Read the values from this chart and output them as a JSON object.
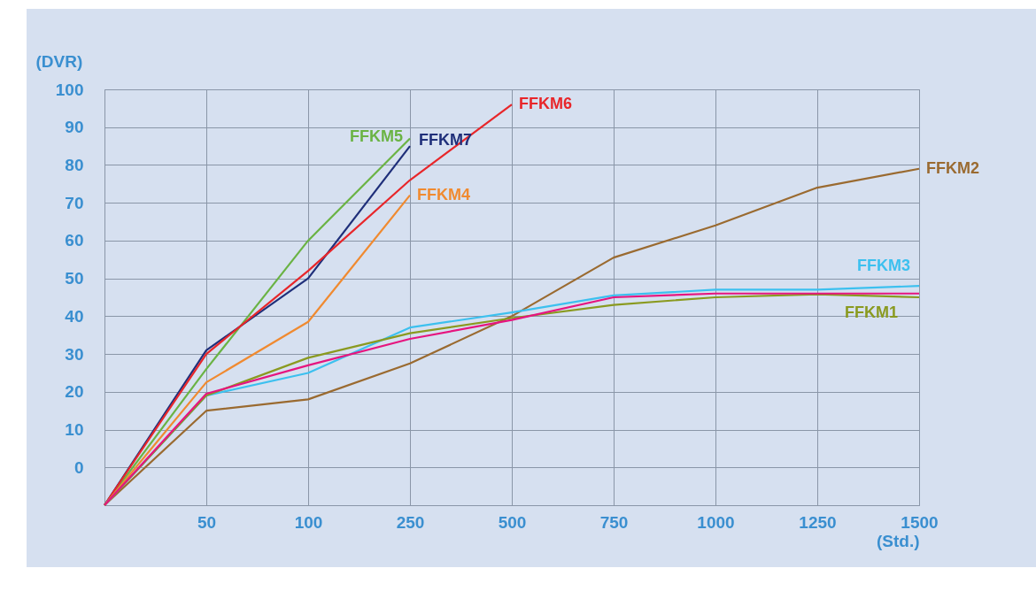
{
  "chart_data": {
    "type": "line",
    "ylabel": "(DVR)",
    "xlabel": "(Std.)",
    "categories": [
      null,
      "50",
      "100",
      "250",
      "500",
      "750",
      "1000",
      "1250",
      "1500"
    ],
    "ylim": [
      -10,
      100
    ],
    "yticks": [
      {
        "value": -10,
        "label": null
      },
      0,
      10,
      20,
      30,
      40,
      50,
      60,
      70,
      80,
      90,
      100
    ],
    "grid": true,
    "legend": false,
    "marker": "none",
    "line_style": "solid",
    "series": [
      {
        "name": "FFKM5",
        "color": "#6ab344",
        "values": [
          -10,
          26,
          60,
          87,
          null,
          null,
          null,
          null,
          null
        ]
      },
      {
        "name": "FFKM7",
        "color": "#1f2f7a",
        "values": [
          -10,
          31,
          50,
          85,
          null,
          null,
          null,
          null,
          null
        ]
      },
      {
        "name": "FFKM6",
        "color": "#e8262a",
        "values": [
          -10,
          30,
          52,
          76,
          96,
          null,
          null,
          null,
          null
        ]
      },
      {
        "name": "FFKM4",
        "color": "#f08a30",
        "values": [
          -10,
          22.5,
          38.5,
          72,
          null,
          null,
          null,
          null,
          null
        ]
      },
      {
        "name": "FFKM2",
        "color": "#9a6a30",
        "values": [
          -10,
          15,
          18,
          27.5,
          40,
          55.5,
          64,
          74,
          79
        ]
      },
      {
        "name": "FFKM3",
        "color": "#3cc0ef",
        "values": [
          -10,
          19,
          25,
          37,
          41,
          45.5,
          47,
          47,
          48
        ]
      },
      {
        "name": "FFKM1",
        "color": "#8a9a20",
        "values": [
          -10,
          19,
          29,
          35.5,
          39.5,
          43,
          45,
          45.8,
          45
        ]
      },
      {
        "color": "#e6157f",
        "values": [
          -10,
          19.5,
          27,
          34,
          39,
          45,
          46,
          46,
          46
        ]
      }
    ]
  }
}
